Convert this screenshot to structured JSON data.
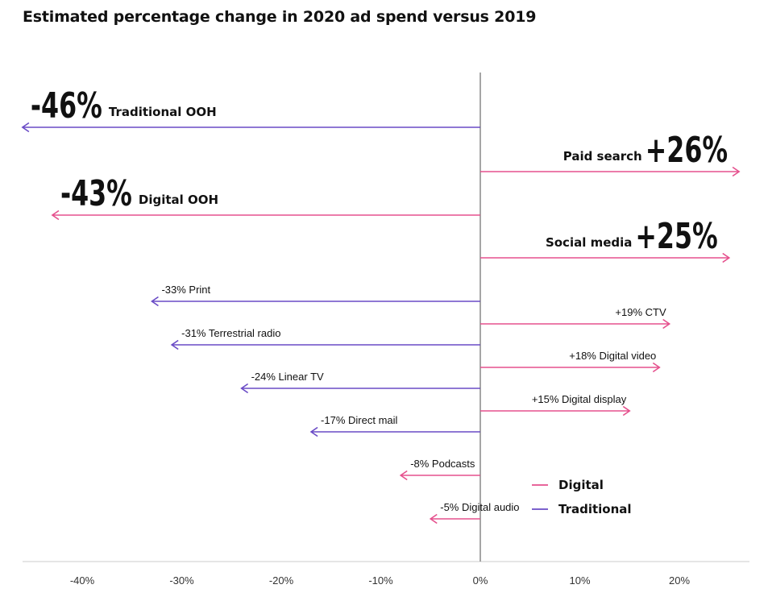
{
  "chart_data": {
    "type": "bar",
    "orientation": "horizontal",
    "title": "Estimated percentage change in 2020 ad spend versus 2019",
    "xlabel": "",
    "ylabel": "",
    "xlim": [
      -47,
      27
    ],
    "x_ticks": [
      "-40%",
      "-30%",
      "-20%",
      "-10%",
      "0%",
      "10%",
      "20%"
    ],
    "x_tick_values": [
      -40,
      -30,
      -20,
      -10,
      0,
      10,
      20
    ],
    "colors": {
      "Digital": "#e5508d",
      "Traditional": "#6a4bc6"
    },
    "legend": {
      "position": "bottom-right",
      "entries": [
        "Digital",
        "Traditional"
      ]
    },
    "items": [
      {
        "name": "Traditional OOH",
        "value": -46,
        "value_label": "-46%",
        "type": "Traditional",
        "emphasis": true
      },
      {
        "name": "Paid search",
        "value": 26,
        "value_label": "+26%",
        "type": "Digital",
        "emphasis": true
      },
      {
        "name": "Digital OOH",
        "value": -43,
        "value_label": "-43%",
        "type": "Digital",
        "emphasis": true
      },
      {
        "name": "Social media",
        "value": 25,
        "value_label": "+25%",
        "type": "Digital",
        "emphasis": true
      },
      {
        "name": "Print",
        "value": -33,
        "value_label": "-33%",
        "type": "Traditional",
        "emphasis": false
      },
      {
        "name": "CTV",
        "value": 19,
        "value_label": "+19%",
        "type": "Digital",
        "emphasis": false
      },
      {
        "name": "Terrestrial radio",
        "value": -31,
        "value_label": "-31%",
        "type": "Traditional",
        "emphasis": false
      },
      {
        "name": "Digital video",
        "value": 18,
        "value_label": "+18%",
        "type": "Digital",
        "emphasis": false
      },
      {
        "name": "Linear TV",
        "value": -24,
        "value_label": "-24%",
        "type": "Traditional",
        "emphasis": false
      },
      {
        "name": "Digital display",
        "value": 15,
        "value_label": "+15%",
        "type": "Digital",
        "emphasis": false
      },
      {
        "name": "Direct mail",
        "value": -17,
        "value_label": "-17%",
        "type": "Traditional",
        "emphasis": false
      },
      {
        "name": "Podcasts",
        "value": -8,
        "value_label": "-8%",
        "type": "Digital",
        "emphasis": false
      },
      {
        "name": "Digital audio",
        "value": -5,
        "value_label": "-5%",
        "type": "Digital",
        "emphasis": false
      }
    ]
  }
}
